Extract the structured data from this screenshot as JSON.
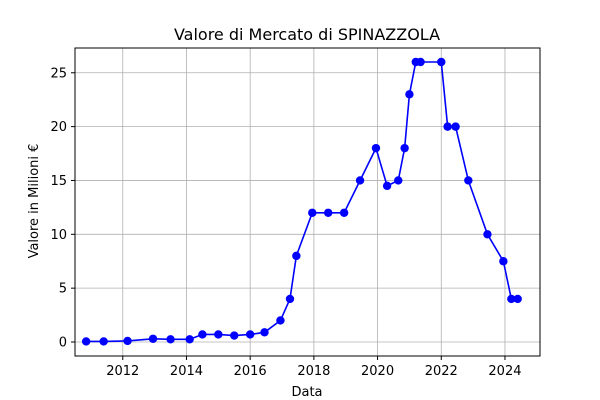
{
  "chart_data": {
    "type": "line",
    "title": "Valore di Mercato di SPINAZZOLA",
    "xlabel": "Data",
    "ylabel": "Valore in Milioni €",
    "xlim": [
      2010.5,
      2025.1
    ],
    "ylim": [
      -1.3,
      27.3
    ],
    "x_ticks": [
      2012,
      2014,
      2016,
      2018,
      2020,
      2022,
      2024
    ],
    "y_ticks": [
      0,
      5,
      10,
      15,
      20,
      25
    ],
    "grid": true,
    "colors": {
      "series": "#0000ff"
    },
    "series": [
      {
        "x": [
          2010.85,
          2011.4,
          2012.15,
          2012.95,
          2013.5,
          2014.1,
          2014.5,
          2015.0,
          2015.5,
          2016.0,
          2016.45,
          2016.95,
          2017.25,
          2017.45,
          2017.95,
          2018.45,
          2018.95,
          2019.45,
          2019.95,
          2020.3,
          2020.65,
          2020.85,
          2021.0,
          2021.2,
          2021.35,
          2022.0,
          2022.2,
          2022.45,
          2022.85,
          2023.45,
          2023.95,
          2024.2,
          2024.4
        ],
        "y": [
          0.05,
          0.05,
          0.1,
          0.3,
          0.25,
          0.25,
          0.7,
          0.7,
          0.6,
          0.7,
          0.9,
          2.0,
          4.0,
          8.0,
          12.0,
          12.0,
          12.0,
          15.0,
          18.0,
          14.5,
          15.0,
          18.0,
          23.0,
          26.0,
          26.0,
          26.0,
          20.0,
          20.0,
          15.0,
          10.0,
          7.5,
          4.0,
          4.0
        ]
      }
    ]
  }
}
